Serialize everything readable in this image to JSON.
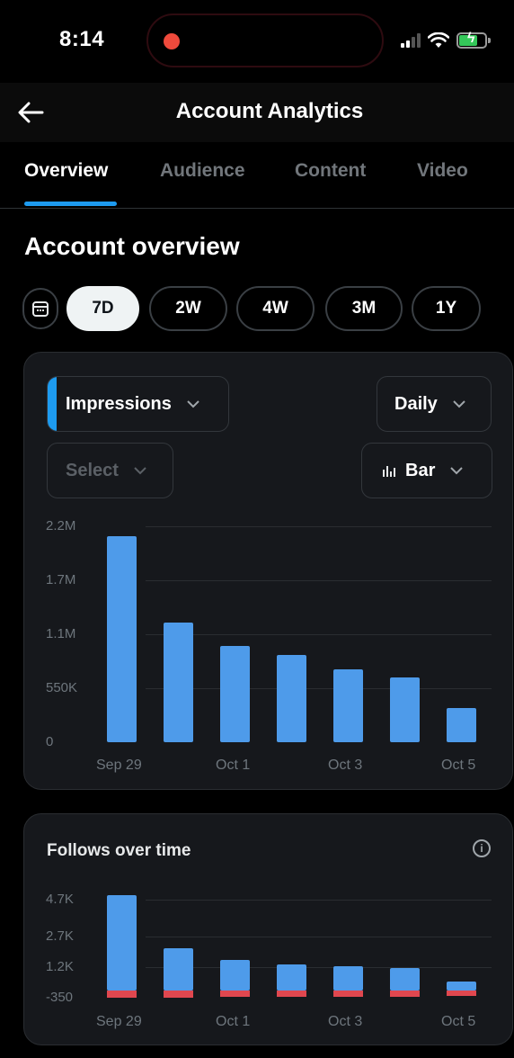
{
  "status": {
    "time": "8:14",
    "icons": [
      "record-dot",
      "cellular-signal",
      "wifi",
      "battery-charging"
    ]
  },
  "header": {
    "title": "Account Analytics",
    "back_icon": "arrow-left-icon"
  },
  "tabs": [
    {
      "label": "Overview",
      "active": true
    },
    {
      "label": "Audience",
      "active": false
    },
    {
      "label": "Content",
      "active": false
    },
    {
      "label": "Video",
      "active": false
    }
  ],
  "overview": {
    "heading": "Account overview",
    "ranges": [
      {
        "label": "7D",
        "active": true
      },
      {
        "label": "2W",
        "active": false
      },
      {
        "label": "4W",
        "active": false
      },
      {
        "label": "3M",
        "active": false
      },
      {
        "label": "1Y",
        "active": false
      }
    ]
  },
  "impressions_card": {
    "metric_label": "Impressions",
    "interval_label": "Daily",
    "compare_label": "Select",
    "chart_type_label": "Bar"
  },
  "follows_card": {
    "title": "Follows over time",
    "info_icon": "i"
  },
  "colors": {
    "accent": "#1d9bf0",
    "bar": "#4e9bea",
    "negative": "#e0474f",
    "card_bg": "#16181c"
  },
  "chart_data": [
    {
      "type": "bar",
      "y_tick_labels": [
        "2.2M",
        "1.7M",
        "1.1M",
        "550K",
        "0"
      ],
      "x_tick_labels": [
        "Sep 29",
        "Oct 1",
        "Oct 3",
        "Oct 5"
      ],
      "categories": [
        "Sep 29",
        "Sep 30",
        "Oct 1",
        "Oct 2",
        "Oct 3",
        "Oct 4",
        "Oct 5"
      ],
      "values": [
        2100000,
        1220000,
        980000,
        890000,
        740000,
        660000,
        350000
      ],
      "ylim": [
        0,
        2200000
      ],
      "grid": true
    },
    {
      "type": "bar",
      "title": "Follows over time",
      "y_tick_labels": [
        "4.7K",
        "2.7K",
        "1.2K",
        "-350"
      ],
      "x_tick_labels": [
        "Sep 29",
        "Oct 1",
        "Oct 3",
        "Oct 5"
      ],
      "categories": [
        "Sep 29",
        "Sep 30",
        "Oct 1",
        "Oct 2",
        "Oct 3",
        "Oct 4",
        "Oct 5"
      ],
      "series": [
        {
          "values": [
            4700,
            2100,
            1500,
            1300,
            1200,
            1100,
            450
          ]
        },
        {
          "values": [
            -350,
            -350,
            -320,
            -300,
            -300,
            -320,
            -250
          ]
        }
      ],
      "grid": true
    }
  ]
}
